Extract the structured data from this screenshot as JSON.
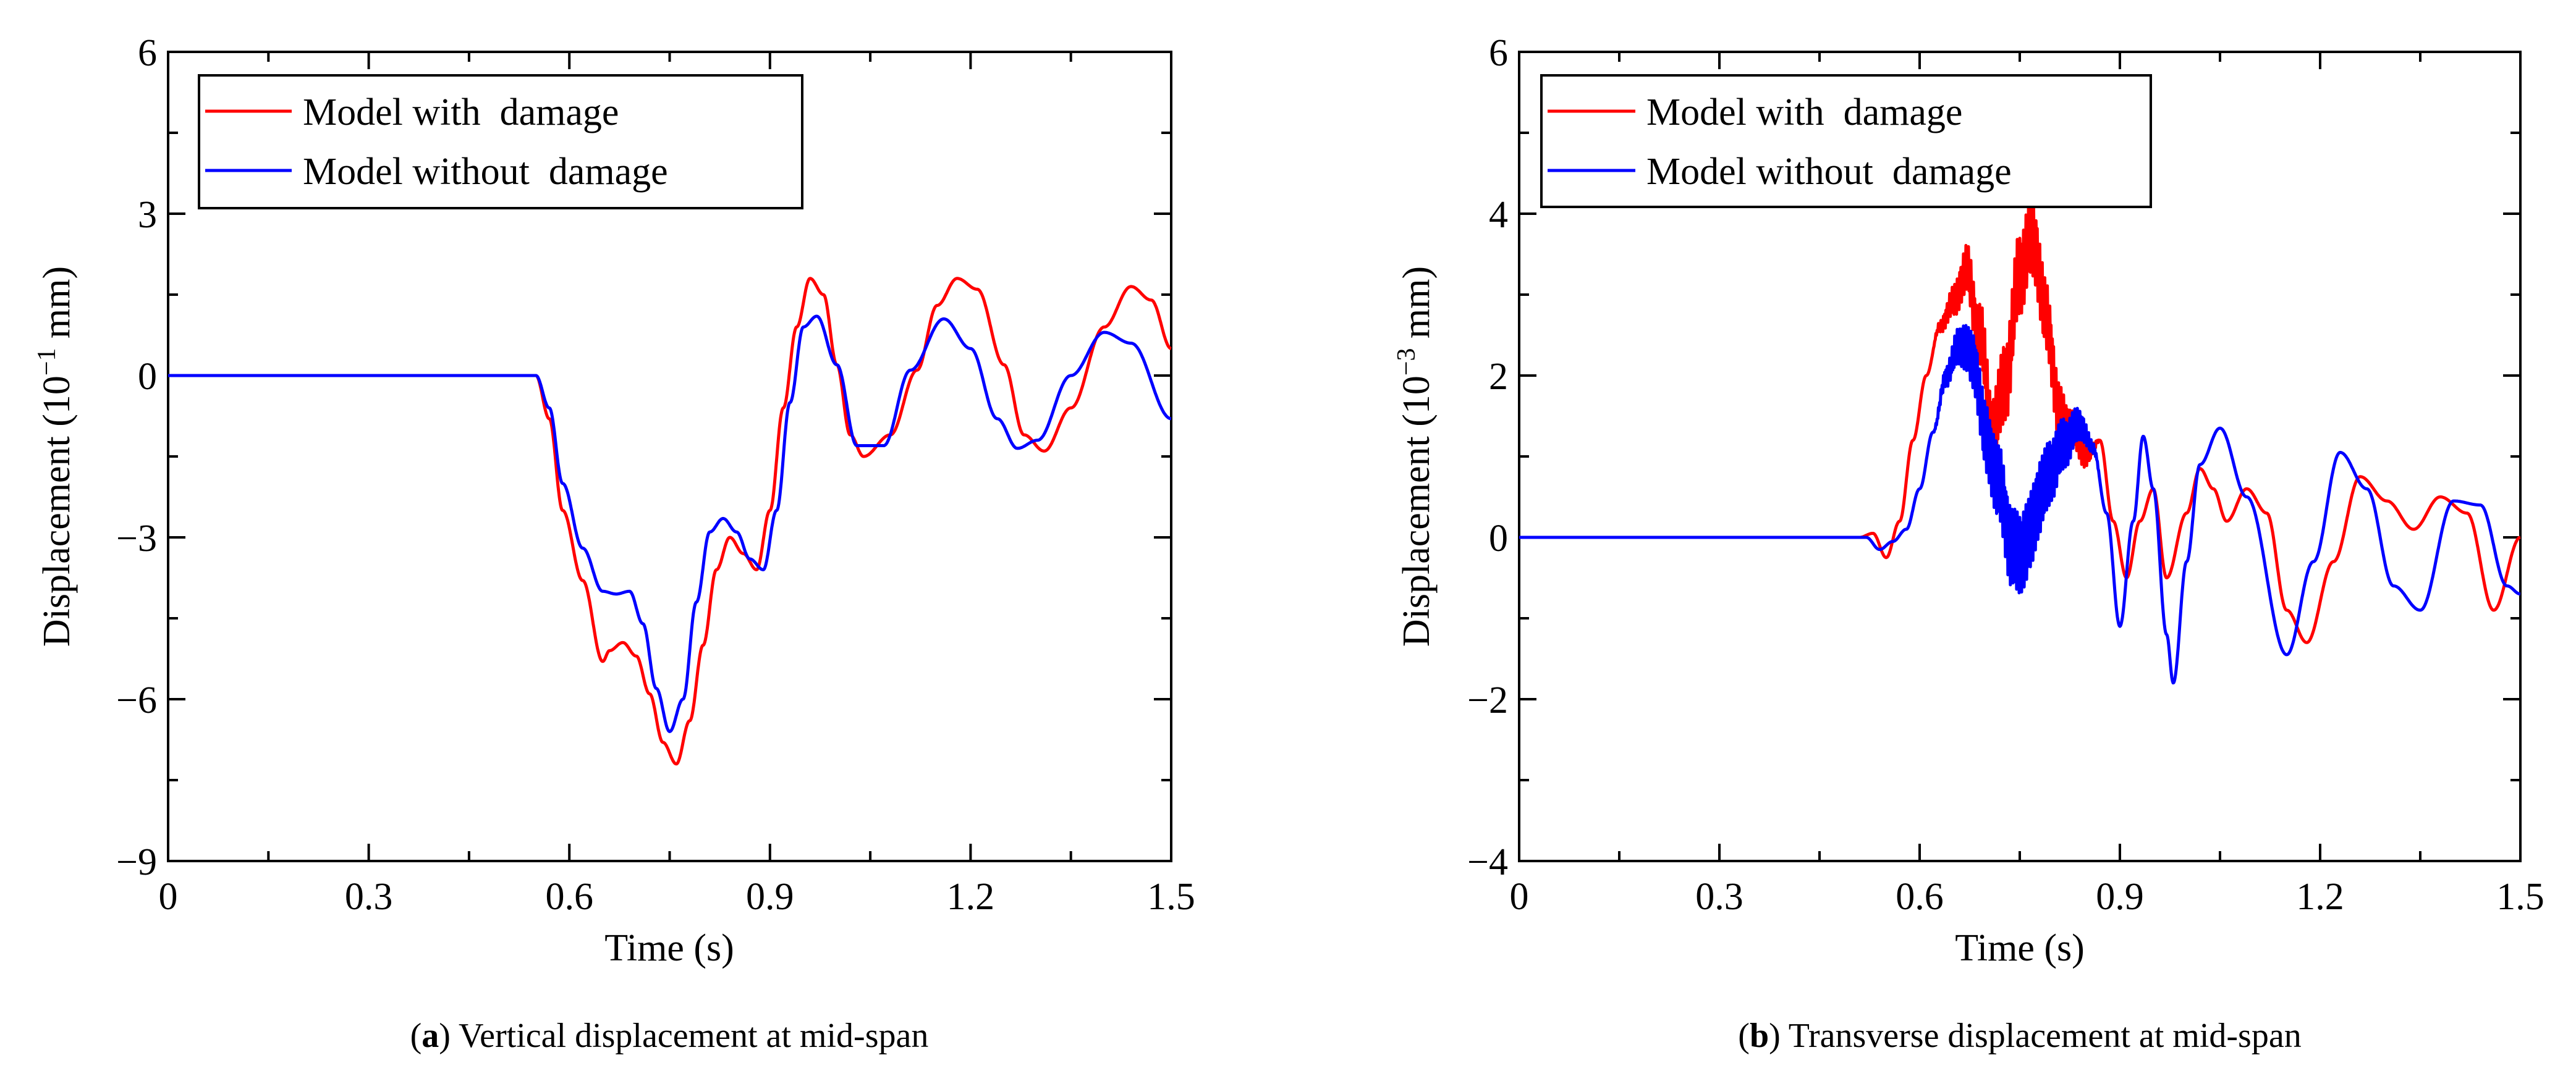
{
  "figure": {
    "captions": [
      {
        "tag": "a",
        "text": " Vertical displacement at mid-span"
      },
      {
        "tag": "b",
        "text": " Transverse displacement at mid-span"
      }
    ]
  },
  "chart_data": [
    {
      "type": "line",
      "title": "",
      "xlabel": "Time (s)",
      "ylabel_prefix": "Displacement (10",
      "ylabel_exp": "−1",
      "ylabel_suffix": " mm)",
      "xlim": [
        0,
        1.5
      ],
      "ylim": [
        -9,
        6
      ],
      "xticks": [
        0,
        0.3,
        0.6,
        0.9,
        1.2,
        1.5
      ],
      "xtick_labels": [
        "0",
        "0.3",
        "0.6",
        "0.9",
        "1.2",
        "1.5"
      ],
      "yticks": [
        -9,
        -6,
        -3,
        0,
        3,
        6
      ],
      "ytick_labels": [
        "−9",
        "−6",
        "−3",
        "0",
        "3",
        "6"
      ],
      "grid": false,
      "legend_position": "top-left",
      "series": [
        {
          "name": "Model with  damage",
          "color": "#ff0000",
          "x": [
            0,
            0.55,
            0.57,
            0.59,
            0.62,
            0.65,
            0.66,
            0.68,
            0.7,
            0.72,
            0.74,
            0.76,
            0.78,
            0.8,
            0.82,
            0.84,
            0.86,
            0.88,
            0.9,
            0.92,
            0.94,
            0.96,
            0.98,
            1.0,
            1.02,
            1.04,
            1.08,
            1.12,
            1.15,
            1.18,
            1.21,
            1.25,
            1.28,
            1.31,
            1.35,
            1.4,
            1.44,
            1.47,
            1.5
          ],
          "y": [
            0,
            0,
            -0.8,
            -2.5,
            -3.8,
            -5.3,
            -5.1,
            -4.95,
            -5.2,
            -5.9,
            -6.8,
            -7.2,
            -6.4,
            -5.0,
            -3.6,
            -3.0,
            -3.3,
            -3.6,
            -2.5,
            -0.6,
            0.9,
            1.8,
            1.5,
            0.2,
            -1.1,
            -1.5,
            -1.1,
            0.1,
            1.3,
            1.8,
            1.6,
            0.2,
            -1.1,
            -1.4,
            -0.6,
            0.9,
            1.65,
            1.4,
            0.5
          ]
        },
        {
          "name": "Model without  damage",
          "color": "#0000ff",
          "x": [
            0,
            0.55,
            0.57,
            0.59,
            0.62,
            0.65,
            0.67,
            0.69,
            0.71,
            0.73,
            0.75,
            0.77,
            0.79,
            0.81,
            0.83,
            0.85,
            0.87,
            0.89,
            0.91,
            0.93,
            0.95,
            0.97,
            1.0,
            1.03,
            1.07,
            1.11,
            1.16,
            1.2,
            1.24,
            1.27,
            1.3,
            1.35,
            1.4,
            1.44,
            1.5
          ],
          "y": [
            0,
            0,
            -0.6,
            -2.0,
            -3.2,
            -4.0,
            -4.05,
            -4.0,
            -4.6,
            -5.8,
            -6.6,
            -6.0,
            -4.2,
            -2.9,
            -2.65,
            -2.9,
            -3.4,
            -3.6,
            -2.5,
            -0.5,
            0.9,
            1.1,
            0.2,
            -1.3,
            -1.3,
            0.1,
            1.05,
            0.5,
            -0.8,
            -1.35,
            -1.2,
            0.0,
            0.8,
            0.6,
            -0.8
          ]
        }
      ]
    },
    {
      "type": "line",
      "title": "",
      "xlabel": "Time (s)",
      "ylabel_prefix": "Displacement (10",
      "ylabel_exp": "−3",
      "ylabel_suffix": " mm)",
      "xlim": [
        0,
        1.5
      ],
      "ylim": [
        -4,
        6
      ],
      "xticks": [
        0,
        0.3,
        0.6,
        0.9,
        1.2,
        1.5
      ],
      "xtick_labels": [
        "0",
        "0.3",
        "0.6",
        "0.9",
        "1.2",
        "1.5"
      ],
      "yticks": [
        -4,
        -2,
        0,
        2,
        4,
        6
      ],
      "ytick_labels": [
        "−4",
        "−2",
        "0",
        "2",
        "4",
        "6"
      ],
      "grid": false,
      "legend_position": "top-left",
      "noise": [
        {
          "series": 0,
          "from": 0.62,
          "to": 0.87,
          "amplitude": 0.55
        },
        {
          "series": 1,
          "from": 0.62,
          "to": 0.87,
          "amplitude": 0.55
        }
      ],
      "series": [
        {
          "name": "Model with  damage",
          "color": "#ff0000",
          "x": [
            0,
            0.51,
            0.53,
            0.55,
            0.57,
            0.59,
            0.61,
            0.63,
            0.65,
            0.67,
            0.69,
            0.71,
            0.73,
            0.75,
            0.77,
            0.79,
            0.81,
            0.83,
            0.85,
            0.87,
            0.89,
            0.91,
            0.93,
            0.95,
            0.97,
            1.0,
            1.02,
            1.04,
            1.06,
            1.09,
            1.12,
            1.15,
            1.18,
            1.22,
            1.26,
            1.3,
            1.34,
            1.38,
            1.42,
            1.46,
            1.5
          ],
          "y": [
            0,
            0,
            0.05,
            -0.25,
            0.2,
            1.2,
            2.0,
            2.6,
            2.9,
            3.3,
            2.5,
            1.3,
            2.0,
            3.3,
            3.7,
            2.7,
            1.5,
            1.3,
            1.0,
            1.2,
            0.2,
            -0.5,
            0.2,
            0.6,
            -0.5,
            0.3,
            0.85,
            0.6,
            0.2,
            0.6,
            0.3,
            -0.9,
            -1.3,
            -0.3,
            0.75,
            0.45,
            0.1,
            0.5,
            0.3,
            -0.9,
            0.0
          ]
        },
        {
          "name": "Model without  damage",
          "color": "#0000ff",
          "x": [
            0,
            0.52,
            0.54,
            0.56,
            0.58,
            0.6,
            0.62,
            0.64,
            0.66,
            0.68,
            0.7,
            0.72,
            0.74,
            0.76,
            0.78,
            0.8,
            0.82,
            0.84,
            0.86,
            0.88,
            0.9,
            0.92,
            0.935,
            0.95,
            0.97,
            0.98,
            1.0,
            1.02,
            1.05,
            1.09,
            1.15,
            1.19,
            1.23,
            1.27,
            1.31,
            1.35,
            1.4,
            1.44,
            1.48,
            1.5
          ],
          "y": [
            0,
            0,
            -0.15,
            -0.05,
            0.1,
            0.6,
            1.3,
            2.0,
            2.4,
            2.2,
            1.2,
            0.6,
            -0.2,
            -0.1,
            0.5,
            0.9,
            1.2,
            1.4,
            1.1,
            0.3,
            -1.1,
            0.2,
            1.25,
            0.6,
            -1.2,
            -1.8,
            -0.3,
            0.9,
            1.35,
            0.5,
            -1.45,
            -0.3,
            1.05,
            0.6,
            -0.6,
            -0.9,
            0.45,
            0.4,
            -0.6,
            -0.7
          ]
        }
      ]
    }
  ]
}
